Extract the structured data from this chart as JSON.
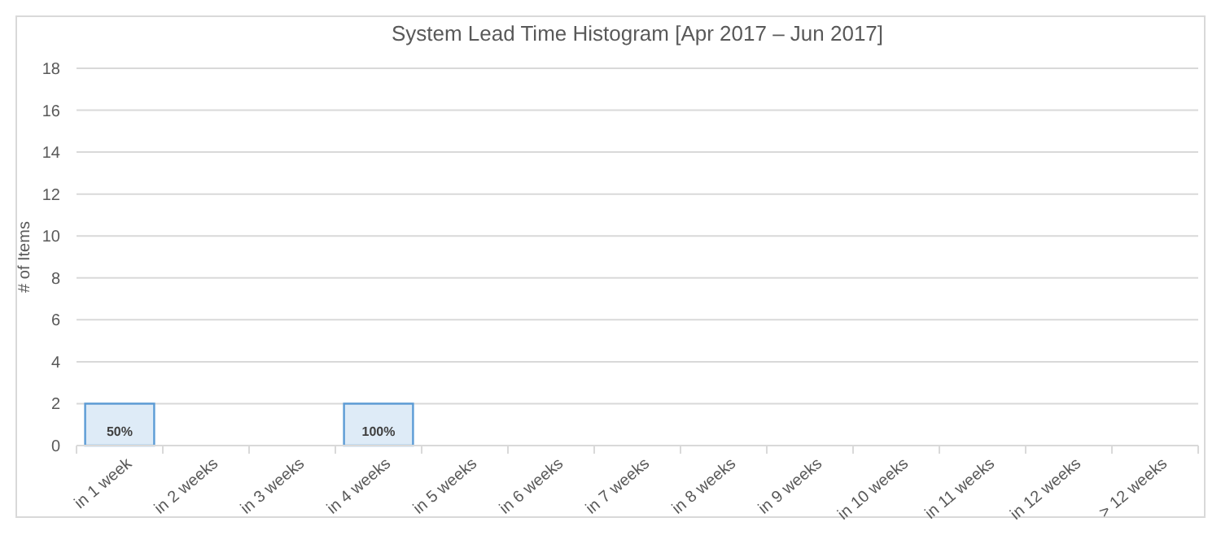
{
  "chart_data": {
    "type": "bar",
    "title": "System Lead Time Histogram [Apr 2017 – Jun 2017]",
    "ylabel": "# of Items",
    "categories": [
      "in 1 week",
      "in 2 weeks",
      "in 3 weeks",
      "in 4 weeks",
      "in 5 weeks",
      "in 6 weeks",
      "in 7 weeks",
      "in 8 weeks",
      "in 9 weeks",
      "in 10 weeks",
      "in 11 weeks",
      "in 12 weeks",
      "> 12 weeks"
    ],
    "values": [
      2,
      0,
      0,
      2,
      0,
      0,
      0,
      0,
      0,
      0,
      0,
      0,
      0
    ],
    "annotations": [
      "50%",
      "100%"
    ],
    "color": "#5b9bd5",
    "ylim": [
      0,
      18
    ],
    "yticks": [
      0,
      2,
      4,
      6,
      8,
      10,
      12,
      14,
      16,
      18
    ],
    "grid": "y"
  }
}
